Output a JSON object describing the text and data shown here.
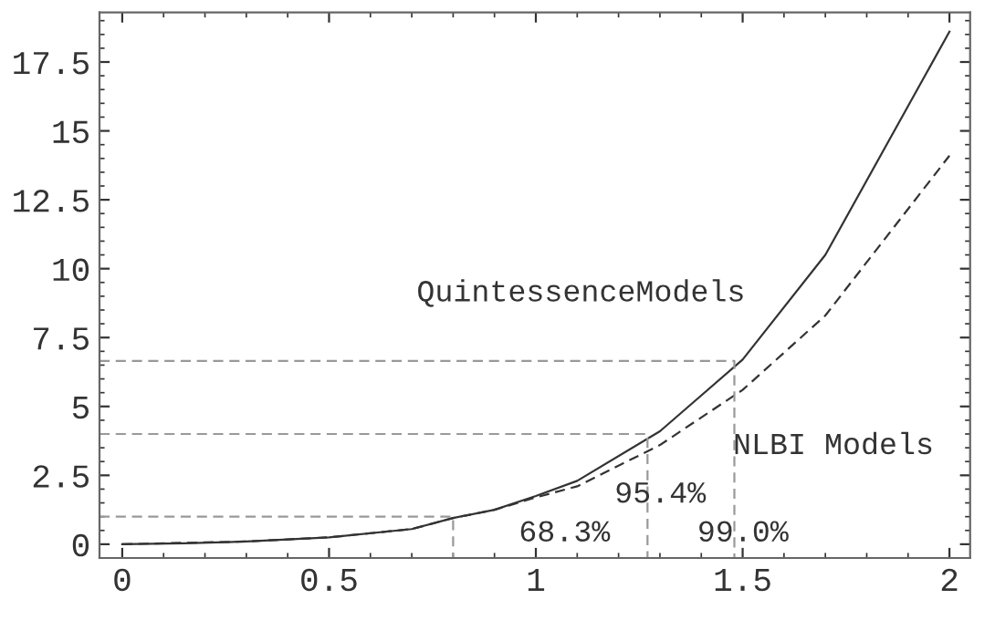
{
  "chart_data": {
    "type": "line",
    "xlim": [
      -0.055,
      2.05
    ],
    "ylim": [
      -0.5,
      19.3
    ],
    "xticks": [
      0,
      0.5,
      1,
      1.5,
      2
    ],
    "yticks": [
      0,
      2.5,
      5,
      7.5,
      10,
      12.5,
      15,
      17.5
    ],
    "grid": false,
    "series": [
      {
        "color": "#333333",
        "line_style": "solid",
        "x": [
          0,
          0.15,
          0.3,
          0.5,
          0.7,
          0.8,
          0.9,
          1.0,
          1.1,
          1.3,
          1.5,
          1.7,
          2.0
        ],
        "values": [
          0,
          0.03,
          0.1,
          0.25,
          0.55,
          0.95,
          1.25,
          1.75,
          2.3,
          4.1,
          6.7,
          10.5,
          18.6
        ]
      },
      {
        "color": "#333333",
        "line_style": "dashed",
        "x": [
          0,
          0.3,
          0.5,
          0.7,
          0.8,
          0.9,
          1.0,
          1.1,
          1.3,
          1.5,
          1.7,
          2.0
        ],
        "values": [
          0,
          0.1,
          0.25,
          0.55,
          0.95,
          1.25,
          1.7,
          2.1,
          3.6,
          5.6,
          8.3,
          14.1
        ]
      },
      {
        "color": "#999999",
        "line_style": "dashed",
        "x": [
          -0.055,
          0.8,
          0.8
        ],
        "values": [
          1.0,
          1.0,
          -0.5
        ]
      },
      {
        "color": "#999999",
        "line_style": "dashed",
        "x": [
          -0.055,
          1.27,
          1.27
        ],
        "values": [
          4.0,
          4.0,
          -0.5
        ]
      },
      {
        "color": "#999999",
        "line_style": "dashed",
        "x": [
          -0.055,
          1.48,
          1.48
        ],
        "values": [
          6.65,
          6.65,
          -0.5
        ]
      }
    ],
    "annotations": [
      "QuintessenceModels",
      "NLBI Models",
      "95.4%",
      "68.3%",
      "99.0%"
    ]
  }
}
